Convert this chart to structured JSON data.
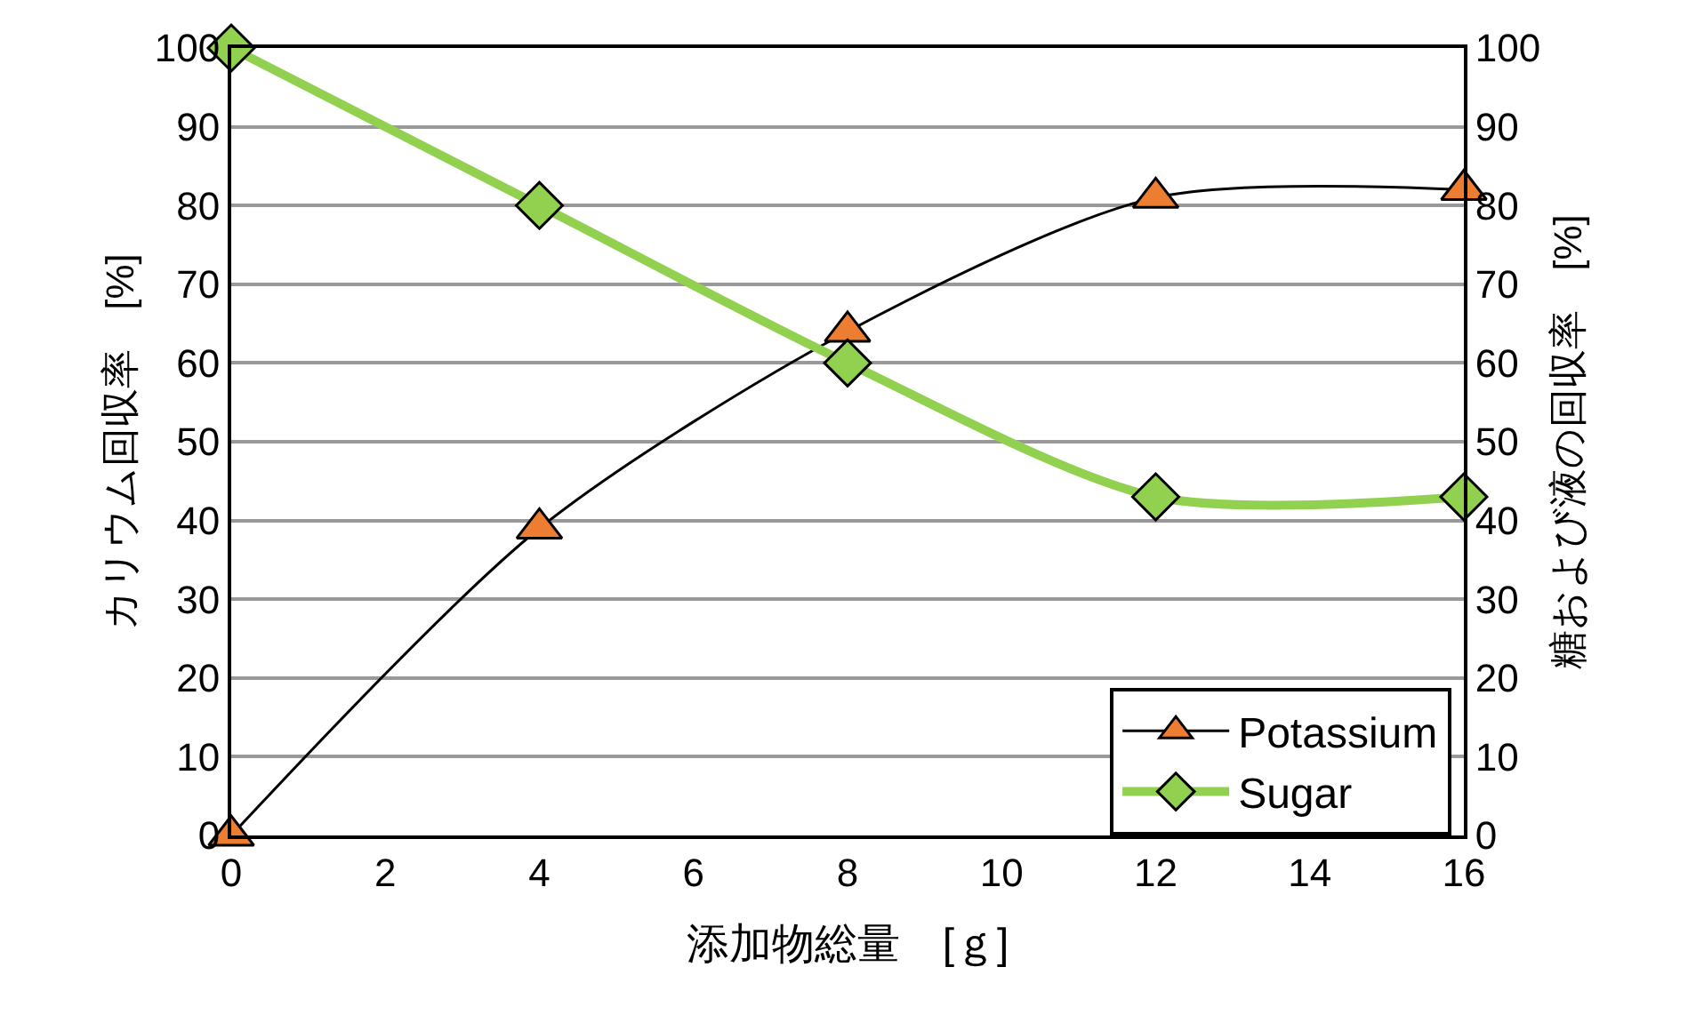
{
  "chart_data": {
    "type": "line",
    "xlabel": "添加物総量　[ｇ]",
    "ylabel": "カリウム回収率　[%]",
    "y2label": "糖および液の回収率　[%]",
    "x": [
      0,
      4,
      8,
      12,
      16
    ],
    "series": [
      {
        "name": "Potassium",
        "color": "#000000",
        "values": [
          0,
          39,
          64,
          81,
          82
        ],
        "marker": "triangle"
      },
      {
        "name": "Sugar",
        "color": "#92d050",
        "values": [
          100,
          80,
          60,
          43,
          43
        ],
        "marker": "diamond",
        "axis": "y2"
      }
    ],
    "xlim": [
      0,
      16
    ],
    "xticks": [
      0,
      2,
      4,
      6,
      8,
      10,
      12,
      14,
      16
    ],
    "ylim": [
      0,
      100
    ],
    "yticks": [
      0,
      10,
      20,
      30,
      40,
      50,
      60,
      70,
      80,
      90,
      100
    ],
    "y2lim": [
      0,
      100
    ],
    "y2ticks": [
      0,
      10,
      20,
      30,
      40,
      50,
      60,
      70,
      80,
      90,
      100
    ],
    "grid": "y",
    "legend": "bottom right"
  }
}
